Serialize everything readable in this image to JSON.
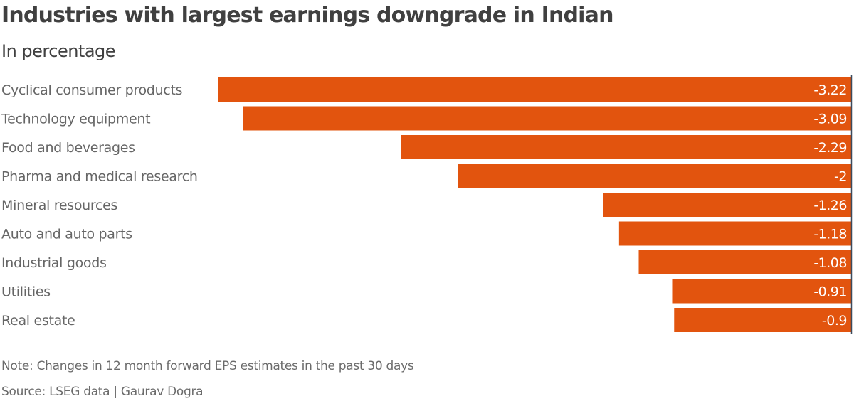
{
  "chart_data": {
    "type": "bar",
    "orientation": "horizontal",
    "title": "Industries with largest earnings downgrade in Indian",
    "subtitle": "In percentage",
    "xlabel": "",
    "ylabel": "",
    "categories": [
      "Cyclical consumer products",
      "Technology equipment",
      "Food and beverages",
      "Pharma and medical research",
      "Mineral resources",
      "Auto and auto parts",
      "Industrial goods",
      "Utilities",
      "Real estate"
    ],
    "values": [
      -3.22,
      -3.09,
      -2.29,
      -2,
      -1.26,
      -1.18,
      -1.08,
      -0.91,
      -0.9
    ],
    "value_labels": [
      "-3.22",
      "-3.09",
      "-2.29",
      "-2",
      "-1.26",
      "-1.18",
      "-1.08",
      "-0.91",
      "-0.9"
    ],
    "xlim": [
      -3.22,
      0
    ],
    "grid": false,
    "legend": "none",
    "bar_color": "#e2540e",
    "axis_color": "#3d4a5c",
    "note": "Note: Changes in 12 month forward EPS estimates in the past 30 days",
    "source": "Source: LSEG data | Gaurav Dogra"
  }
}
